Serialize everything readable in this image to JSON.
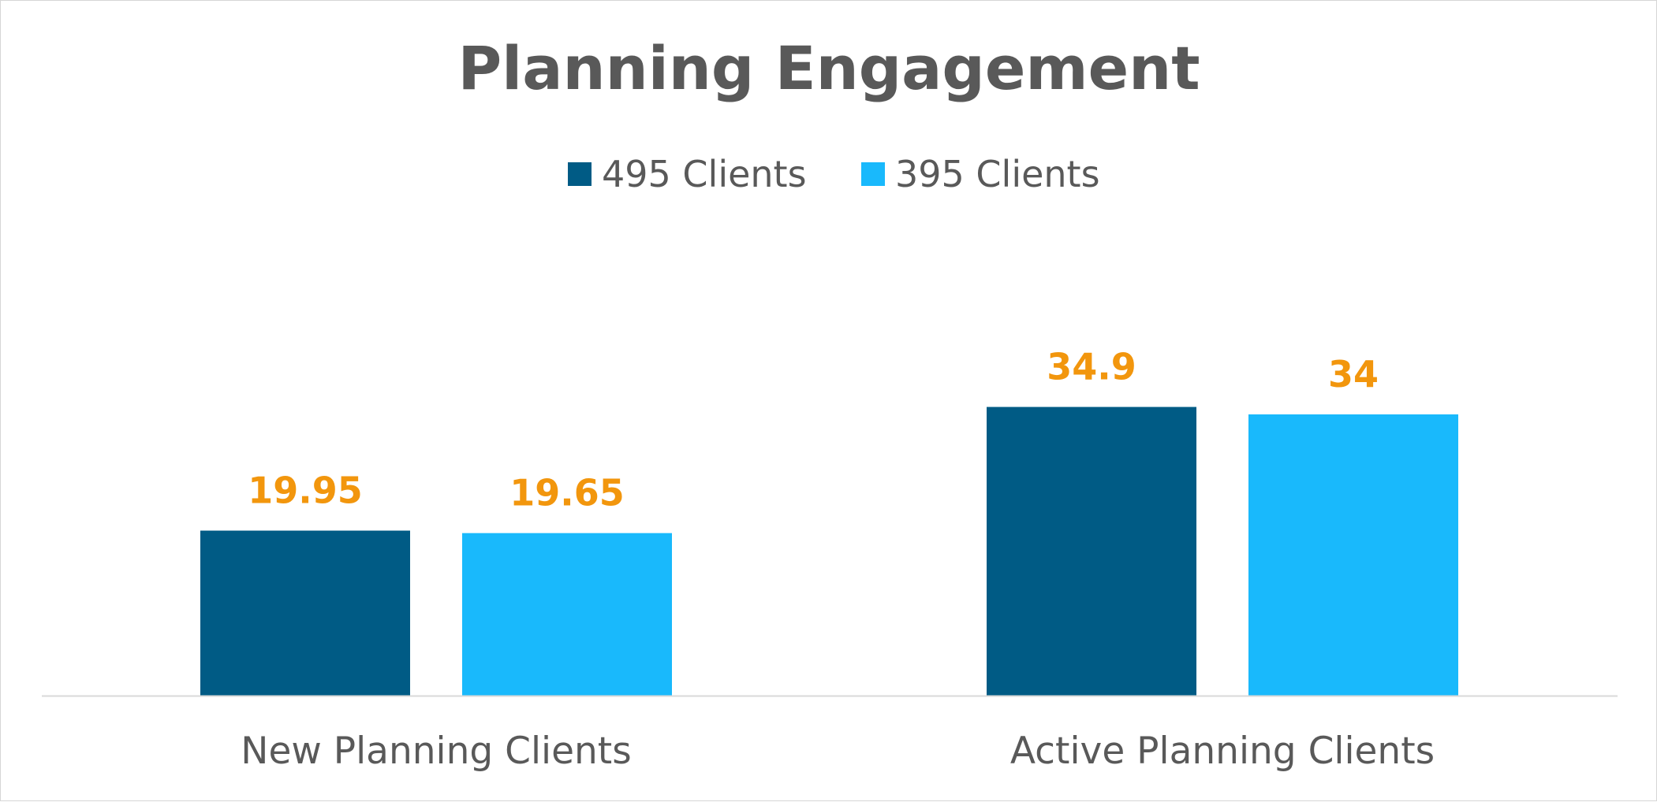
{
  "chart_data": {
    "type": "bar",
    "title": "Planning Engagement",
    "categories": [
      "New Planning Clients",
      "Active Planning Clients"
    ],
    "series": [
      {
        "name": "495 Clients",
        "color": "#005b85",
        "values": [
          19.95,
          34.9
        ],
        "labels": [
          "19.95",
          "34.9"
        ]
      },
      {
        "name": "395 Clients",
        "color": "#19b9fc",
        "values": [
          19.65,
          34
        ],
        "labels": [
          "19.65",
          "34"
        ]
      }
    ],
    "ylim": [
      0,
      40
    ],
    "grid": false,
    "legend_position": "top",
    "label_color": "#f2960d",
    "text_color": "#595959",
    "axis_color": "#d9d9d9"
  }
}
